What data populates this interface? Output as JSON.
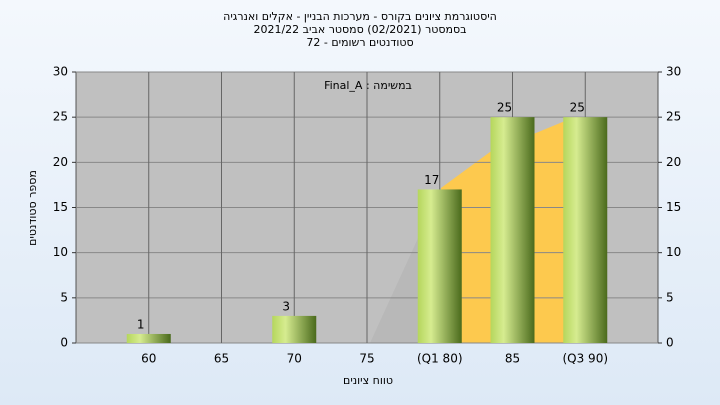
{
  "chart_data": {
    "type": "bar",
    "title": "היסטוגרמת ציונים בקורס - מערכות הבניין - אקלים ואנרגיה",
    "subtitle": [
      "בסמסטר  (02/2021)  סמסטר אביב 2021/22",
      "סטודנטים רשומים - 72"
    ],
    "annotation": "במשימה : Final_A",
    "x_label": "טווח ציונים",
    "y_label": "מספר סטודנטים",
    "categories": [
      "60",
      "65",
      "70",
      "75",
      "(Q1 80)",
      "85",
      "(Q3 90)"
    ],
    "values": [
      1,
      0,
      3,
      0,
      17,
      25,
      25
    ],
    "color": "#8fb43c",
    "ylim": [
      0,
      30
    ],
    "yticks": [
      0,
      5,
      10,
      15,
      20,
      25,
      30
    ],
    "grid": true
  }
}
